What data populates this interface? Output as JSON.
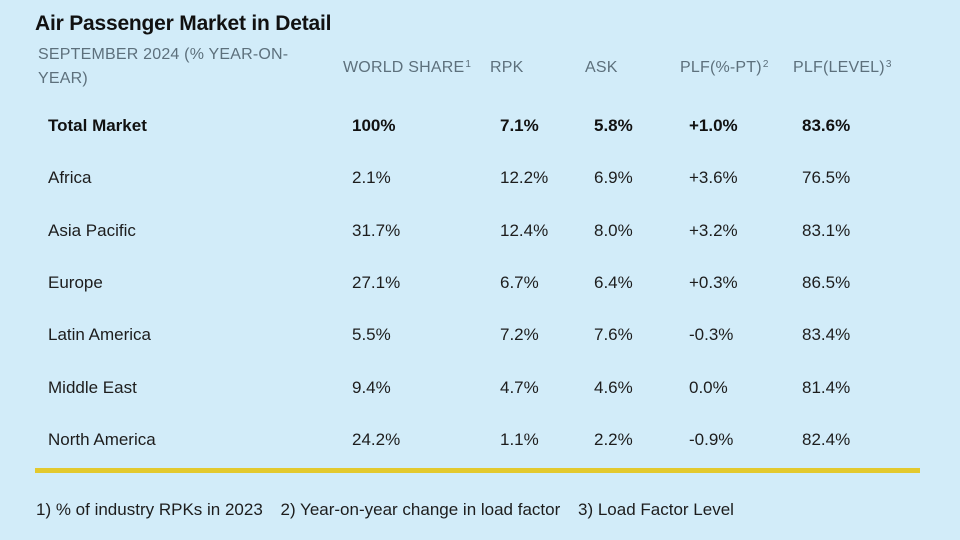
{
  "title": "Air Passenger Market in Detail",
  "headers": {
    "period": "SEPTEMBER 2024 (% YEAR-ON-YEAR)",
    "share": "WORLD SHARE",
    "share_note": "1",
    "rpk": "RPK",
    "ask": "ASK",
    "plf": "PLF(%-PT)",
    "plf_note": "2",
    "level": "PLF(LEVEL)",
    "level_note": "3"
  },
  "chart_data": {
    "type": "table",
    "title": "Air Passenger Market in Detail",
    "columns": [
      "SEPTEMBER 2024 (% YEAR-ON-YEAR)",
      "WORLD SHARE",
      "RPK",
      "ASK",
      "PLF(%-PT)",
      "PLF(LEVEL)"
    ],
    "rows": [
      {
        "region": "Total Market",
        "share": "100%",
        "rpk": "7.1%",
        "ask": "5.8%",
        "plf": "+1.0%",
        "level": "83.6%"
      },
      {
        "region": "Africa",
        "share": "2.1%",
        "rpk": "12.2%",
        "ask": "6.9%",
        "plf": "+3.6%",
        "level": "76.5%"
      },
      {
        "region": "Asia Pacific",
        "share": "31.7%",
        "rpk": "12.4%",
        "ask": "8.0%",
        "plf": "+3.2%",
        "level": "83.1%"
      },
      {
        "region": "Europe",
        "share": "27.1%",
        "rpk": "6.7%",
        "ask": "6.4%",
        "plf": "+0.3%",
        "level": "86.5%"
      },
      {
        "region": "Latin America",
        "share": "5.5%",
        "rpk": "7.2%",
        "ask": "7.6%",
        "plf": "-0.3%",
        "level": "83.4%"
      },
      {
        "region": "Middle East",
        "share": "9.4%",
        "rpk": "4.7%",
        "ask": "4.6%",
        "plf": "0.0%",
        "level": "81.4%"
      },
      {
        "region": "North America",
        "share": "24.2%",
        "rpk": "1.1%",
        "ask": "2.2%",
        "plf": "-0.9%",
        "level": "82.4%"
      }
    ]
  },
  "footnotes": [
    "1) % of industry RPKs in 2023",
    "2) Year-on-year change in load factor",
    "3) Load Factor Level"
  ],
  "colors": {
    "background": "#d2ecf9",
    "header_text": "#5d707c",
    "divider": "#e3c92e"
  }
}
